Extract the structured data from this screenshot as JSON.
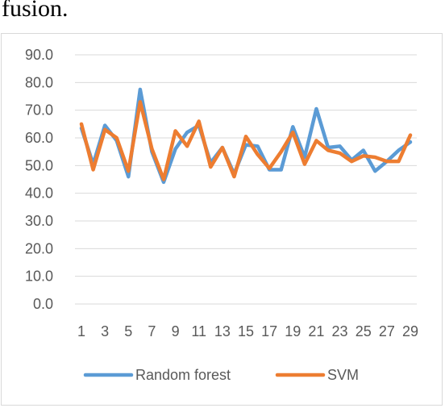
{
  "caption": "fusion.",
  "chart_data": {
    "type": "line",
    "title": "",
    "xlabel": "",
    "ylabel": "",
    "ylim": [
      0,
      90
    ],
    "ytick_step": 10,
    "ytick_labels": [
      "0.0",
      "10.0",
      "20.0",
      "30.0",
      "40.0",
      "50.0",
      "60.0",
      "70.0",
      "80.0",
      "90.0"
    ],
    "x": [
      1,
      2,
      3,
      4,
      5,
      6,
      7,
      8,
      9,
      10,
      11,
      12,
      13,
      14,
      15,
      16,
      17,
      18,
      19,
      20,
      21,
      22,
      23,
      24,
      25,
      26,
      27,
      28,
      29
    ],
    "xtick_labels": [
      "1",
      "3",
      "5",
      "7",
      "9",
      "11",
      "13",
      "15",
      "17",
      "19",
      "21",
      "23",
      "25",
      "27",
      "29"
    ],
    "grid": true,
    "legend_position": "bottom",
    "series": [
      {
        "name": "Random forest",
        "color": "#5b9bd5",
        "values": [
          63.5,
          50.5,
          64.5,
          59.0,
          46.0,
          77.5,
          55.0,
          44.0,
          56.0,
          62.0,
          64.5,
          51.0,
          56.5,
          47.0,
          57.5,
          57.0,
          48.5,
          48.5,
          64.0,
          53.0,
          70.5,
          56.5,
          57.0,
          52.0,
          55.5,
          48.0,
          51.5,
          55.5,
          58.5
        ]
      },
      {
        "name": "SVM",
        "color": "#ed7d31",
        "values": [
          65.0,
          48.5,
          63.0,
          60.0,
          48.0,
          73.0,
          56.0,
          45.0,
          62.5,
          57.0,
          66.0,
          49.5,
          56.5,
          46.0,
          60.5,
          54.0,
          49.0,
          55.0,
          62.0,
          50.5,
          59.0,
          55.5,
          54.5,
          51.5,
          53.5,
          53.0,
          51.5,
          51.5,
          61.0
        ]
      }
    ]
  }
}
